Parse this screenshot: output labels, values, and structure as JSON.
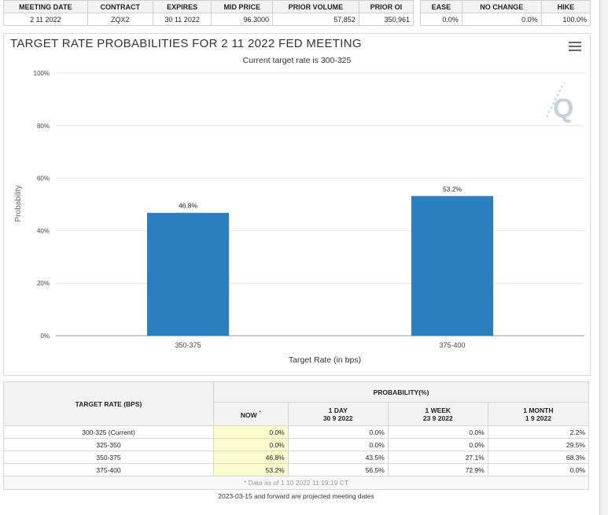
{
  "meeting_table": {
    "headers": [
      "MEETING DATE",
      "CONTRACT",
      "EXPIRES",
      "MID PRICE",
      "PRIOR VOLUME",
      "PRIOR OI"
    ],
    "row": [
      "2 11 2022",
      "ZQX2",
      "30 11 2022",
      "96.3000",
      "57,852",
      "350,961"
    ]
  },
  "probability_summary": {
    "headers": [
      "EASE",
      "NO CHANGE",
      "HIKE"
    ],
    "row": [
      "0.0%",
      "0.0%",
      "100.0%"
    ]
  },
  "chart_data": {
    "type": "bar",
    "title": "TARGET RATE PROBABILITIES FOR 2 11 2022 FED MEETING",
    "subtitle": "Current target rate is 300-325",
    "categories": [
      "350-375",
      "375-400"
    ],
    "values": [
      46.8,
      53.2
    ],
    "data_labels": [
      "46.8%",
      "53.2%"
    ],
    "xlabel": "Target Rate (in bps)",
    "ylabel": "Probability",
    "ylim": [
      0,
      100
    ],
    "y_ticks": [
      "0%",
      "20%",
      "40%",
      "60%",
      "80%",
      "100%"
    ],
    "bar_color": "#2b7fbf",
    "grid": true,
    "legend": "none",
    "watermark_logo": "Q"
  },
  "rate_table": {
    "target_rate_header": "TARGET RATE (BPS)",
    "probability_header": "PROBABILITY(%)",
    "now_label": "NOW",
    "now_marker": "*",
    "columns": [
      {
        "label": "1 DAY",
        "date": "30 9 2022"
      },
      {
        "label": "1 WEEK",
        "date": "23 9 2022"
      },
      {
        "label": "1 MONTH",
        "date": "1 9 2022"
      }
    ],
    "rows": [
      {
        "rate": "300-325 (Current)",
        "now": "0.0%",
        "day": "0.0%",
        "week": "0.0%",
        "month": "2.2%"
      },
      {
        "rate": "325-350",
        "now": "0.0%",
        "day": "0.0%",
        "week": "0.0%",
        "month": "29.5%"
      },
      {
        "rate": "350-375",
        "now": "46.8%",
        "day": "43.5%",
        "week": "27.1%",
        "month": "68.3%"
      },
      {
        "rate": "375-400",
        "now": "53.2%",
        "day": "56.5%",
        "week": "72.9%",
        "month": "0.0%"
      }
    ],
    "note": "* Data as of 1 10 2022 11:19:19 CT",
    "footer": "2023-03-15 and forward are projected meeting dates"
  }
}
